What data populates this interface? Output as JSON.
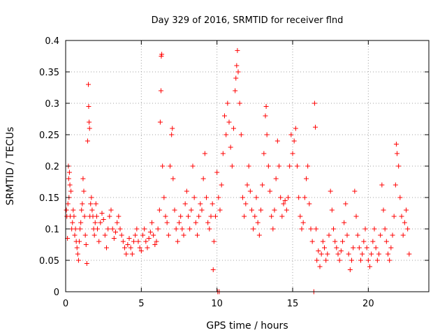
{
  "chart_data": {
    "type": "scatter",
    "title": "Day 329 of 2016, SRMTID for receiver flnd",
    "xlabel": "GPS time / hours",
    "ylabel": "SRMTID / TECUs",
    "xlim": [
      0,
      24
    ],
    "ylim": [
      0,
      0.4
    ],
    "x_ticks": [
      0,
      5,
      10,
      15,
      20
    ],
    "x_tick_labels": [
      "0",
      "5",
      "10",
      "15",
      "20"
    ],
    "y_ticks": [
      0,
      0.05,
      0.1,
      0.15,
      0.2,
      0.25,
      0.3,
      0.35,
      0.4
    ],
    "y_tick_labels": [
      "0",
      "0.05",
      "0.1",
      "0.15",
      "0.2",
      "0.25",
      "0.3",
      "0.35",
      "0.4"
    ],
    "grid": true,
    "marker": "plus",
    "series_color": "#ff0000",
    "series": [
      {
        "name": "SRMTID",
        "points": [
          [
            0.05,
            0.13
          ],
          [
            0.08,
            0.12
          ],
          [
            0.12,
            0.085
          ],
          [
            0.15,
            0.14
          ],
          [
            0.18,
            0.2
          ],
          [
            0.2,
            0.18
          ],
          [
            0.22,
            0.15
          ],
          [
            0.25,
            0.19
          ],
          [
            0.28,
            0.17
          ],
          [
            0.3,
            0.12
          ],
          [
            0.35,
            0.16
          ],
          [
            0.4,
            0.1
          ],
          [
            0.45,
            0.11
          ],
          [
            0.5,
            0.13
          ],
          [
            0.55,
            0.12
          ],
          [
            0.6,
            0.09
          ],
          [
            0.65,
            0.1
          ],
          [
            0.7,
            0.08
          ],
          [
            0.75,
            0.07
          ],
          [
            0.8,
            0.06
          ],
          [
            0.85,
            0.05
          ],
          [
            0.9,
            0.08
          ],
          [
            0.95,
            0.1
          ],
          [
            1.0,
            0.11
          ],
          [
            1.05,
            0.13
          ],
          [
            1.1,
            0.14
          ],
          [
            1.15,
            0.18
          ],
          [
            1.2,
            0.16
          ],
          [
            1.25,
            0.12
          ],
          [
            1.3,
            0.09
          ],
          [
            1.35,
            0.075
          ],
          [
            1.4,
            0.045
          ],
          [
            1.45,
            0.24
          ],
          [
            1.5,
            0.33
          ],
          [
            1.52,
            0.295
          ],
          [
            1.55,
            0.27
          ],
          [
            1.58,
            0.26
          ],
          [
            1.6,
            0.12
          ],
          [
            1.65,
            0.14
          ],
          [
            1.7,
            0.15
          ],
          [
            1.75,
            0.13
          ],
          [
            1.8,
            0.12
          ],
          [
            1.85,
            0.1
          ],
          [
            1.9,
            0.09
          ],
          [
            1.95,
            0.11
          ],
          [
            2.0,
            0.14
          ],
          [
            2.05,
            0.12
          ],
          [
            2.1,
            0.1
          ],
          [
            2.2,
            0.08
          ],
          [
            2.3,
            0.11
          ],
          [
            2.4,
            0.125
          ],
          [
            2.5,
            0.115
          ],
          [
            2.6,
            0.09
          ],
          [
            2.7,
            0.07
          ],
          [
            2.8,
            0.1
          ],
          [
            2.9,
            0.12
          ],
          [
            3.0,
            0.13
          ],
          [
            3.1,
            0.1
          ],
          [
            3.2,
            0.085
          ],
          [
            3.3,
            0.095
          ],
          [
            3.4,
            0.11
          ],
          [
            3.5,
            0.12
          ],
          [
            3.6,
            0.1
          ],
          [
            3.7,
            0.09
          ],
          [
            3.8,
            0.08
          ],
          [
            3.9,
            0.07
          ],
          [
            4.0,
            0.06
          ],
          [
            4.1,
            0.075
          ],
          [
            4.2,
            0.085
          ],
          [
            4.3,
            0.07
          ],
          [
            4.4,
            0.06
          ],
          [
            4.5,
            0.08
          ],
          [
            4.6,
            0.09
          ],
          [
            4.7,
            0.1
          ],
          [
            4.8,
            0.08
          ],
          [
            4.9,
            0.07
          ],
          [
            5.0,
            0.065
          ],
          [
            5.1,
            0.09
          ],
          [
            5.2,
            0.1
          ],
          [
            5.3,
            0.08
          ],
          [
            5.4,
            0.07
          ],
          [
            5.5,
            0.085
          ],
          [
            5.6,
            0.095
          ],
          [
            5.7,
            0.11
          ],
          [
            5.8,
            0.09
          ],
          [
            5.9,
            0.075
          ],
          [
            6.0,
            0.08
          ],
          [
            6.1,
            0.1
          ],
          [
            6.2,
            0.13
          ],
          [
            6.25,
            0.27
          ],
          [
            6.3,
            0.32
          ],
          [
            6.32,
            0.375
          ],
          [
            6.35,
            0.378
          ],
          [
            6.4,
            0.2
          ],
          [
            6.5,
            0.15
          ],
          [
            6.6,
            0.12
          ],
          [
            6.7,
            0.11
          ],
          [
            6.8,
            0.09
          ],
          [
            6.9,
            0.2
          ],
          [
            7.0,
            0.25
          ],
          [
            7.05,
            0.26
          ],
          [
            7.1,
            0.18
          ],
          [
            7.2,
            0.13
          ],
          [
            7.3,
            0.1
          ],
          [
            7.4,
            0.08
          ],
          [
            7.5,
            0.11
          ],
          [
            7.6,
            0.12
          ],
          [
            7.7,
            0.1
          ],
          [
            7.8,
            0.09
          ],
          [
            7.9,
            0.14
          ],
          [
            8.0,
            0.16
          ],
          [
            8.1,
            0.12
          ],
          [
            8.2,
            0.1
          ],
          [
            8.3,
            0.13
          ],
          [
            8.4,
            0.2
          ],
          [
            8.5,
            0.15
          ],
          [
            8.6,
            0.11
          ],
          [
            8.7,
            0.09
          ],
          [
            8.8,
            0.12
          ],
          [
            8.9,
            0.14
          ],
          [
            9.0,
            0.13
          ],
          [
            9.1,
            0.18
          ],
          [
            9.2,
            0.22
          ],
          [
            9.3,
            0.15
          ],
          [
            9.4,
            0.11
          ],
          [
            9.5,
            0.1
          ],
          [
            9.6,
            0.12
          ],
          [
            9.7,
            0.14
          ],
          [
            9.75,
            0.035
          ],
          [
            9.8,
            0.08
          ],
          [
            9.9,
            0.12
          ],
          [
            10.0,
            0.19
          ],
          [
            10.05,
            0.0
          ],
          [
            10.1,
            0.15
          ],
          [
            10.15,
            0.0
          ],
          [
            10.2,
            0.13
          ],
          [
            10.3,
            0.17
          ],
          [
            10.4,
            0.22
          ],
          [
            10.5,
            0.28
          ],
          [
            10.6,
            0.25
          ],
          [
            10.7,
            0.3
          ],
          [
            10.8,
            0.27
          ],
          [
            10.9,
            0.23
          ],
          [
            11.0,
            0.2
          ],
          [
            11.1,
            0.26
          ],
          [
            11.2,
            0.32
          ],
          [
            11.25,
            0.34
          ],
          [
            11.3,
            0.36
          ],
          [
            11.35,
            0.384
          ],
          [
            11.4,
            0.35
          ],
          [
            11.5,
            0.3
          ],
          [
            11.6,
            0.25
          ],
          [
            11.7,
            0.15
          ],
          [
            11.8,
            0.12
          ],
          [
            11.9,
            0.14
          ],
          [
            12.0,
            0.17
          ],
          [
            12.1,
            0.2
          ],
          [
            12.2,
            0.16
          ],
          [
            12.3,
            0.13
          ],
          [
            12.4,
            0.1
          ],
          [
            12.5,
            0.12
          ],
          [
            12.6,
            0.15
          ],
          [
            12.7,
            0.11
          ],
          [
            12.8,
            0.09
          ],
          [
            12.9,
            0.13
          ],
          [
            13.0,
            0.17
          ],
          [
            13.1,
            0.22
          ],
          [
            13.2,
            0.28
          ],
          [
            13.25,
            0.295
          ],
          [
            13.3,
            0.25
          ],
          [
            13.4,
            0.2
          ],
          [
            13.5,
            0.16
          ],
          [
            13.6,
            0.12
          ],
          [
            13.7,
            0.1
          ],
          [
            13.8,
            0.13
          ],
          [
            13.9,
            0.18
          ],
          [
            14.0,
            0.24
          ],
          [
            14.1,
            0.2
          ],
          [
            14.2,
            0.15
          ],
          [
            14.3,
            0.12
          ],
          [
            14.4,
            0.14
          ],
          [
            14.5,
            0.145
          ],
          [
            14.6,
            0.13
          ],
          [
            14.7,
            0.15
          ],
          [
            14.8,
            0.2
          ],
          [
            14.9,
            0.25
          ],
          [
            15.0,
            0.22
          ],
          [
            15.1,
            0.24
          ],
          [
            15.2,
            0.26
          ],
          [
            15.3,
            0.2
          ],
          [
            15.4,
            0.15
          ],
          [
            15.5,
            0.12
          ],
          [
            15.6,
            0.1
          ],
          [
            15.7,
            0.11
          ],
          [
            15.8,
            0.15
          ],
          [
            15.9,
            0.18
          ],
          [
            16.0,
            0.2
          ],
          [
            16.1,
            0.14
          ],
          [
            16.2,
            0.1
          ],
          [
            16.3,
            0.08
          ],
          [
            16.4,
            0.0
          ],
          [
            16.45,
            0.3
          ],
          [
            16.5,
            0.262
          ],
          [
            16.55,
            0.1
          ],
          [
            16.6,
            0.05
          ],
          [
            16.7,
            0.065
          ],
          [
            16.8,
            0.04
          ],
          [
            16.9,
            0.06
          ],
          [
            17.0,
            0.08
          ],
          [
            17.1,
            0.07
          ],
          [
            17.2,
            0.05
          ],
          [
            17.3,
            0.06
          ],
          [
            17.4,
            0.09
          ],
          [
            17.5,
            0.16
          ],
          [
            17.6,
            0.13
          ],
          [
            17.7,
            0.1
          ],
          [
            17.8,
            0.08
          ],
          [
            17.9,
            0.07
          ],
          [
            18.0,
            0.06
          ],
          [
            18.1,
            0.05
          ],
          [
            18.2,
            0.065
          ],
          [
            18.3,
            0.08
          ],
          [
            18.4,
            0.11
          ],
          [
            18.5,
            0.14
          ],
          [
            18.6,
            0.09
          ],
          [
            18.7,
            0.06
          ],
          [
            18.8,
            0.035
          ],
          [
            18.9,
            0.05
          ],
          [
            19.0,
            0.07
          ],
          [
            19.1,
            0.16
          ],
          [
            19.2,
            0.12
          ],
          [
            19.3,
            0.09
          ],
          [
            19.4,
            0.07
          ],
          [
            19.5,
            0.05
          ],
          [
            19.6,
            0.06
          ],
          [
            19.7,
            0.08
          ],
          [
            19.8,
            0.1
          ],
          [
            19.9,
            0.07
          ],
          [
            20.0,
            0.05
          ],
          [
            20.1,
            0.04
          ],
          [
            20.2,
            0.06
          ],
          [
            20.3,
            0.08
          ],
          [
            20.4,
            0.1
          ],
          [
            20.5,
            0.07
          ],
          [
            20.6,
            0.05
          ],
          [
            20.7,
            0.06
          ],
          [
            20.8,
            0.09
          ],
          [
            20.9,
            0.17
          ],
          [
            21.0,
            0.13
          ],
          [
            21.1,
            0.1
          ],
          [
            21.2,
            0.08
          ],
          [
            21.3,
            0.06
          ],
          [
            21.4,
            0.05
          ],
          [
            21.5,
            0.07
          ],
          [
            21.6,
            0.09
          ],
          [
            21.7,
            0.12
          ],
          [
            21.8,
            0.17
          ],
          [
            21.85,
            0.235
          ],
          [
            21.9,
            0.22
          ],
          [
            22.0,
            0.2
          ],
          [
            22.1,
            0.15
          ],
          [
            22.2,
            0.12
          ],
          [
            22.3,
            0.09
          ],
          [
            22.4,
            0.11
          ],
          [
            22.5,
            0.13
          ],
          [
            22.6,
            0.1
          ],
          [
            22.7,
            0.06
          ]
        ]
      }
    ]
  }
}
